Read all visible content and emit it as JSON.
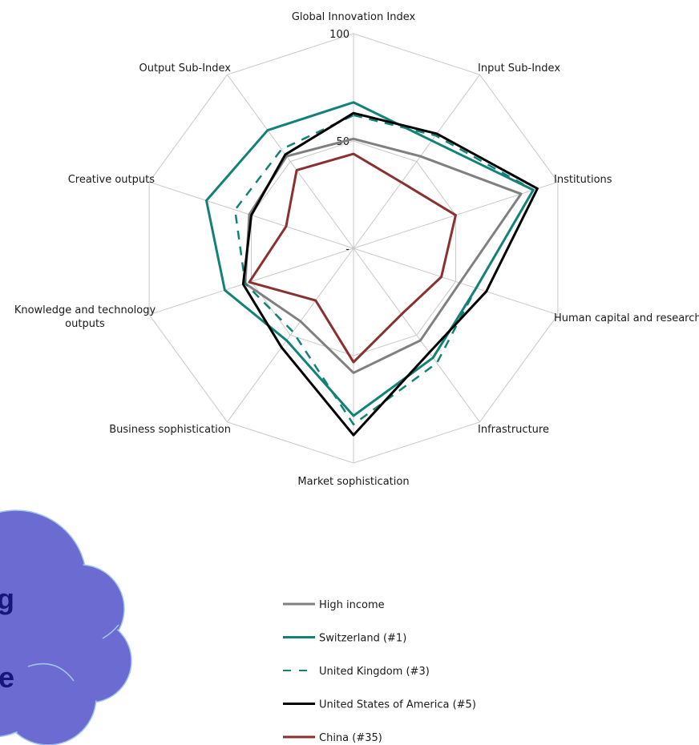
{
  "chart_data": {
    "type": "radar",
    "axes": [
      "Global Innovation Index",
      "Input Sub-Index",
      "Institutions",
      "Human capital and research",
      "Infrastructure",
      "Market sophistication",
      "Business sophistication",
      "Knowledge and technology outputs",
      "Creative outputs",
      "Output Sub-Index"
    ],
    "range": [
      0,
      100
    ],
    "tick_labels": [
      {
        "value": 0,
        "label": "-"
      },
      {
        "value": 50,
        "label": "50"
      },
      {
        "value": 100,
        "label": "100"
      }
    ],
    "grid": true,
    "legend_position": "bottom-right",
    "series": [
      {
        "name": "High income",
        "color": "#808080",
        "dash": "solid",
        "values": [
          51,
          53,
          82,
          52,
          53,
          58,
          42,
          53,
          51,
          53
        ]
      },
      {
        "name": "Switzerland (#1)",
        "color": "#128276",
        "dash": "solid",
        "values": [
          68,
          62,
          88,
          60,
          63,
          78,
          53,
          63,
          72,
          68
        ]
      },
      {
        "name": "United Kingdom (#3)",
        "color": "#128276",
        "dash": "dashed",
        "values": [
          62,
          65,
          88,
          60,
          66,
          82,
          48,
          53,
          58,
          57
        ]
      },
      {
        "name": "United States of America (#5)",
        "color": "#000000",
        "dash": "solid",
        "values": [
          63,
          66,
          90,
          65,
          60,
          87,
          57,
          54,
          50,
          54
        ]
      },
      {
        "name": "China (#35)",
        "color": "#8b3030",
        "dash": "solid",
        "values": [
          44,
          38,
          50,
          43,
          38,
          53,
          30,
          51,
          33,
          45
        ]
      }
    ]
  },
  "cloud": {
    "line1": "g",
    "line2": "e",
    "fill": "#6b6bd2",
    "stroke": "#9fc6e6"
  }
}
